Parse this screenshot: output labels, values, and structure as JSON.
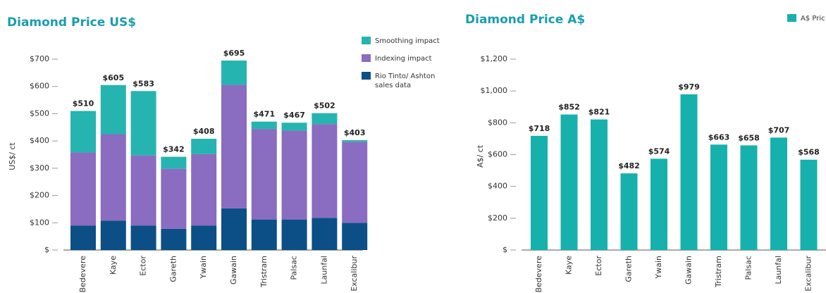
{
  "chart_data": [
    {
      "type": "bar",
      "stacked": true,
      "title": "Diamond Price US$",
      "y_label": "US$/ ct",
      "categories": [
        "Bedevere",
        "Kaye",
        "Ector",
        "Gareth",
        "Ywain",
        "Gawain",
        "Tristram",
        "Palsac",
        "Launfal",
        "Excalibur"
      ],
      "series": [
        {
          "name": "Rio Tinto/ Ashton sales data",
          "color": "#0b4f86",
          "values": [
            90,
            108,
            90,
            78,
            90,
            153,
            112,
            112,
            118,
            100
          ]
        },
        {
          "name": "Indexing impact",
          "color": "#8a6cc0",
          "values": [
            268,
            317,
            257,
            220,
            262,
            453,
            332,
            326,
            344,
            297
          ]
        },
        {
          "name": "Smoothing impact",
          "color": "#26b4b0",
          "values": [
            152,
            180,
            236,
            44,
            56,
            89,
            27,
            29,
            40,
            6
          ]
        }
      ],
      "totals": [
        510,
        605,
        583,
        342,
        408,
        695,
        471,
        467,
        502,
        403
      ],
      "total_labels": [
        "$510",
        "$605",
        "$583",
        "$342",
        "$408",
        "$695",
        "$471",
        "$467",
        "$502",
        "$403"
      ],
      "ylim": [
        0,
        760
      ],
      "yticks": [
        {
          "value": 0,
          "label": "$"
        },
        {
          "value": 100,
          "label": "$100"
        },
        {
          "value": 200,
          "label": "$200"
        },
        {
          "value": 300,
          "label": "$300"
        },
        {
          "value": 400,
          "label": "$400"
        },
        {
          "value": 500,
          "label": "$500"
        },
        {
          "value": 600,
          "label": "$600"
        },
        {
          "value": 700,
          "label": "$700"
        }
      ]
    },
    {
      "type": "bar",
      "title": "Diamond Price A$",
      "y_label": "A$/ ct",
      "categories": [
        "Bedevere",
        "Kaye",
        "Ector",
        "Gareth",
        "Ywain",
        "Gawain",
        "Tristram",
        "Palsac",
        "Launfal",
        "Excalibur"
      ],
      "series": [
        {
          "name": "A$ Pric",
          "color": "#16b1ad",
          "values": [
            718,
            852,
            821,
            482,
            574,
            979,
            663,
            658,
            707,
            568
          ],
          "value_labels": [
            "$718",
            "$852",
            "$821",
            "$482",
            "$574",
            "$979",
            "$663",
            "$658",
            "$707",
            "$568"
          ]
        }
      ],
      "ylim": [
        0,
        1250
      ],
      "yticks": [
        {
          "value": 0,
          "label": "$"
        },
        {
          "value": 200,
          "label": "$200"
        },
        {
          "value": 400,
          "label": "$400"
        },
        {
          "value": 600,
          "label": "$600"
        },
        {
          "value": 800,
          "label": "$800"
        },
        {
          "value": 1000,
          "label": "$1,000"
        },
        {
          "value": 1200,
          "label": "$1,200"
        }
      ]
    }
  ]
}
